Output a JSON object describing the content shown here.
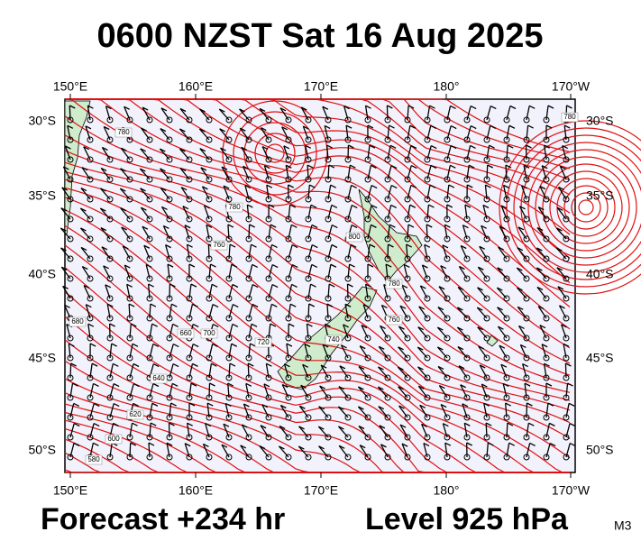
{
  "header": {
    "title": "0600 NZST Sat 16 Aug 2025"
  },
  "map": {
    "longitude_labels": [
      "150°E",
      "160°E",
      "170°E",
      "180°",
      "170°W"
    ],
    "latitude_labels": [
      "30°S",
      "35°S",
      "40°S",
      "45°S",
      "50°S"
    ],
    "contour_labels": [
      "780",
      "780",
      "760",
      "800",
      "780",
      "760",
      "740",
      "720",
      "700",
      "680",
      "660",
      "640",
      "620",
      "600",
      "580",
      "780"
    ]
  },
  "footer": {
    "forecast": "Forecast +234 hr",
    "level": "Level 925 hPa",
    "model": "M3"
  }
}
